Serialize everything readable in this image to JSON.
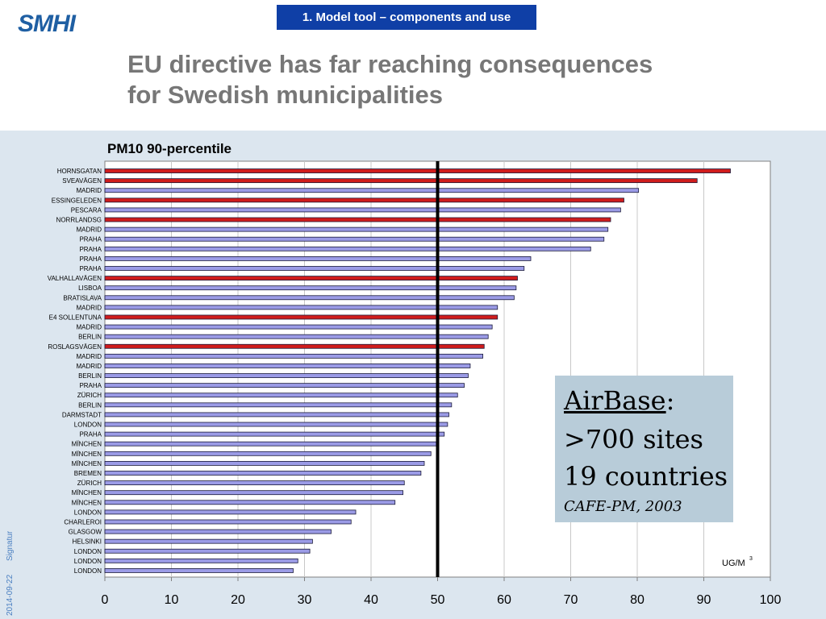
{
  "header": {
    "logo_text": "SMHI",
    "section_tag": "1. Model tool – components and use",
    "title_line1": "EU directive has far reaching consequences",
    "title_line2": "for Swedish municipalities"
  },
  "footer": {
    "signature": "Signatur",
    "date": "2014-09-22"
  },
  "infobox": {
    "name": "AirBase",
    "name_suffix": ":",
    "sites": ">700 sites",
    "countries": "19 countries",
    "source": "CAFE-PM, 2003"
  },
  "colors": {
    "swedish_bar": "#d01c1c",
    "other_bar": "#9b9be6",
    "limit_line": "#000000",
    "logo": "#1f5fa3",
    "tag_bg": "#0f3fa6"
  },
  "chart_data": {
    "type": "bar",
    "orientation": "horizontal",
    "title": "PM10 90-percentile",
    "unit_label": "UG/M",
    "unit_superscript": "3",
    "xlim": [
      0,
      100
    ],
    "xticks": [
      "0",
      "10",
      "20",
      "30",
      "40",
      "50",
      "60",
      "70",
      "80",
      "90",
      "100"
    ],
    "reference_line": 50,
    "grid": true,
    "categories": [
      "HORNSGATAN",
      "SVEAVÄGEN",
      "MADRID",
      "ESSINGELEDEN",
      "PESCARA",
      "NORRLANDSG",
      "MADRID",
      "PRAHA",
      "PRAHA",
      "PRAHA",
      "PRAHA",
      "VALHALLAVÄGEN",
      "LISBOA",
      "BRATISLAVA",
      "MADRID",
      "E4 SOLLENTUNA",
      "MADRID",
      "BERLIN",
      "ROSLAGSVÄGEN",
      "MADRID",
      "MADRID",
      "BERLIN",
      "PRAHA",
      "ZÜRICH",
      "BERLIN",
      "DARMSTADT",
      "LONDON",
      "PRAHA",
      "MÏNCHEN",
      "MÏNCHEN",
      "MÏNCHEN",
      "BREMEN",
      "ZÜRICH",
      "MÏNCHEN",
      "MÏNCHEN",
      "LONDON",
      "CHARLEROI",
      "GLASGOW",
      "HELSINKI",
      "LONDON",
      "LONDON",
      "LONDON"
    ],
    "values": [
      94,
      89,
      80.2,
      78,
      77.5,
      76,
      75.6,
      75,
      73,
      64,
      63,
      62,
      61.8,
      61.5,
      59,
      59,
      58.2,
      57.6,
      57,
      56.8,
      54.9,
      54.6,
      54,
      53,
      52.1,
      51.7,
      51.5,
      51,
      49.8,
      49,
      48,
      47.5,
      45,
      44.8,
      43.6,
      37.7,
      37,
      34,
      31.2,
      30.8,
      29,
      28.3
    ],
    "swedish": [
      true,
      true,
      false,
      true,
      false,
      true,
      false,
      false,
      false,
      false,
      false,
      true,
      false,
      false,
      false,
      true,
      false,
      false,
      true,
      false,
      false,
      false,
      false,
      false,
      false,
      false,
      false,
      false,
      false,
      false,
      false,
      false,
      false,
      false,
      false,
      false,
      false,
      false,
      false,
      false,
      false,
      false
    ]
  }
}
